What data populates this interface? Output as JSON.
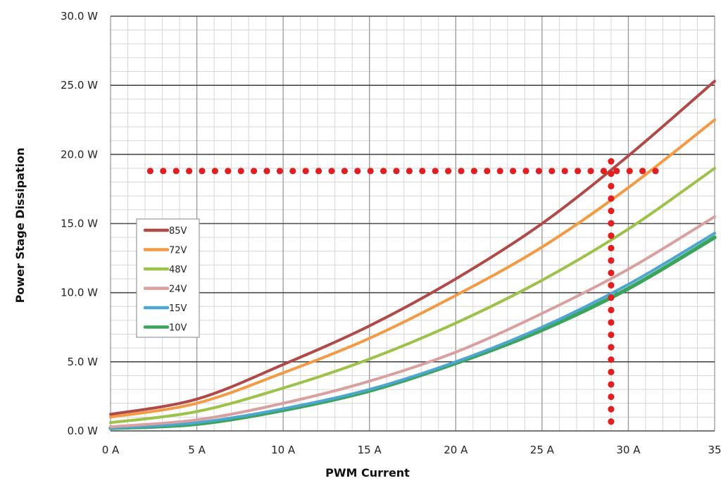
{
  "chart_data": {
    "type": "line",
    "title": "",
    "xlabel": "PWM Current",
    "ylabel": "Power Stage Dissipation",
    "xlim": [
      0,
      35
    ],
    "ylim": [
      0,
      30
    ],
    "x_ticks": [
      0,
      5,
      10,
      15,
      20,
      25,
      30,
      35
    ],
    "x_tick_labels": [
      "0 A",
      "5 A",
      "10 A",
      "15 A",
      "20 A",
      "25 A",
      "30 A",
      "35"
    ],
    "y_ticks": [
      0,
      5,
      10,
      15,
      20,
      25,
      30
    ],
    "y_tick_labels": [
      "0.0 W",
      "5.0 W",
      "10.0 W",
      "15.0 W",
      "20.0 W",
      "25.0 W",
      "30.0 W"
    ],
    "grid": true,
    "legend_position": "left",
    "series": [
      {
        "name": "85V",
        "color": "#b04a48",
        "x": [
          0,
          5,
          10,
          15,
          20,
          25,
          30,
          35
        ],
        "y": [
          1.2,
          2.3,
          4.8,
          7.6,
          11.0,
          15.0,
          19.9,
          25.3
        ]
      },
      {
        "name": "72V",
        "color": "#f39a45",
        "x": [
          0,
          5,
          10,
          15,
          20,
          25,
          30,
          35
        ],
        "y": [
          1.0,
          2.0,
          4.2,
          6.7,
          9.8,
          13.3,
          17.6,
          22.5
        ]
      },
      {
        "name": "48V",
        "color": "#9cc24a",
        "x": [
          0,
          5,
          10,
          15,
          20,
          25,
          30,
          35
        ],
        "y": [
          0.6,
          1.4,
          3.1,
          5.2,
          7.8,
          10.9,
          14.6,
          19.0
        ]
      },
      {
        "name": "24V",
        "color": "#d9a0a0",
        "x": [
          0,
          5,
          10,
          15,
          20,
          25,
          30,
          35
        ],
        "y": [
          0.3,
          0.8,
          2.0,
          3.6,
          5.7,
          8.5,
          11.7,
          15.5
        ]
      },
      {
        "name": "15V",
        "color": "#4ea6d0",
        "x": [
          0,
          5,
          10,
          15,
          20,
          25,
          30,
          35
        ],
        "y": [
          0.2,
          0.6,
          1.6,
          3.0,
          5.0,
          7.5,
          10.6,
          14.3
        ]
      },
      {
        "name": "10V",
        "color": "#3aa55a",
        "x": [
          0,
          5,
          10,
          15,
          20,
          25,
          30,
          35
        ],
        "y": [
          0.2,
          0.5,
          1.5,
          2.9,
          4.9,
          7.3,
          10.3,
          14.0
        ]
      }
    ],
    "annotations": [
      {
        "type": "horizontal-dotted",
        "color": "#e02020",
        "y": 18.8,
        "x_range": [
          2.3,
          32
        ]
      },
      {
        "type": "vertical-dotted",
        "color": "#e02020",
        "x": 29,
        "y_range": [
          0.5,
          19.5
        ]
      }
    ]
  }
}
